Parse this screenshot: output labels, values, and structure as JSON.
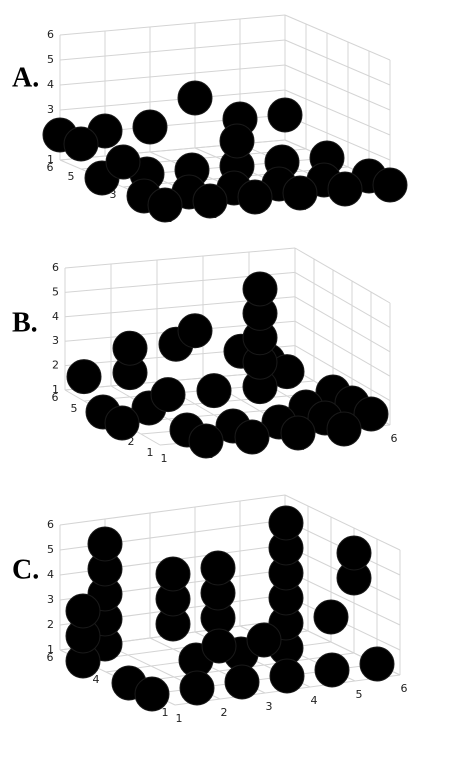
{
  "chart_data": [
    {
      "type": "scatter3d",
      "title": "A.",
      "color": "#000000",
      "grid": true,
      "x": [
        1,
        2,
        3,
        4,
        5,
        6,
        1,
        2,
        3,
        4,
        5,
        6,
        4,
        1,
        2,
        3,
        4,
        5,
        6,
        1,
        2,
        3,
        4,
        5,
        6,
        1,
        1
      ],
      "y": [
        6,
        6,
        6,
        6,
        6,
        6,
        4,
        4,
        4,
        4,
        4,
        4,
        4,
        2,
        2,
        2,
        2,
        2,
        2,
        1,
        1,
        1,
        1,
        1,
        1,
        5,
        3
      ],
      "z": [
        2,
        2,
        2,
        3,
        2,
        2,
        1,
        1,
        1,
        1,
        1,
        1,
        2,
        1,
        1,
        1,
        1,
        1,
        1,
        1,
        1,
        1,
        1,
        1,
        1,
        2,
        2
      ],
      "xlim": [
        1,
        6
      ],
      "ylim": [
        1,
        6
      ],
      "zlim": [
        1,
        6
      ],
      "xticks": [
        1,
        2,
        3,
        4,
        5,
        6
      ],
      "yticks": [
        1,
        2,
        3,
        4,
        5,
        6
      ],
      "zticks": [
        1,
        2,
        3,
        4,
        5,
        6
      ]
    },
    {
      "type": "scatter3d",
      "title": "B.",
      "color": "#000000",
      "grid": true,
      "x": [
        1,
        2,
        3,
        2,
        5,
        6,
        4,
        4,
        4,
        4,
        4,
        2,
        2,
        3,
        3,
        4,
        5,
        5,
        6,
        3,
        2,
        1,
        1,
        3,
        4,
        5,
        6,
        4,
        2,
        5
      ],
      "y": [
        3,
        2,
        1,
        1,
        1,
        2,
        3,
        3,
        3,
        3,
        3,
        5,
        5,
        5,
        4,
        4,
        4,
        5,
        4,
        3,
        3,
        5,
        4,
        2,
        2,
        3,
        3,
        1,
        4,
        2
      ],
      "z": [
        1,
        1,
        1,
        1,
        1,
        1,
        2,
        3,
        4,
        5,
        6,
        2,
        3,
        3,
        4,
        3,
        2,
        2,
        1,
        2,
        2,
        2,
        1,
        1,
        1,
        1,
        1,
        1,
        1,
        1
      ],
      "xlim": [
        1,
        6
      ],
      "ylim": [
        1,
        6
      ],
      "zlim": [
        1,
        6
      ],
      "xticks": [
        1,
        2,
        3,
        4,
        5,
        6
      ],
      "yticks": [
        1,
        2,
        3,
        4,
        5,
        6
      ],
      "zticks": [
        1,
        2,
        3,
        4,
        5,
        6
      ]
    },
    {
      "type": "scatter3d",
      "title": "C.",
      "color": "#000000",
      "grid": true,
      "x": [
        1,
        1,
        1,
        2,
        2,
        2,
        2,
        2,
        3,
        3,
        3,
        4,
        4,
        4,
        3,
        4,
        3,
        4,
        2,
        3,
        4,
        5,
        5,
        5,
        5,
        5,
        5,
        6,
        6,
        6,
        5,
        1,
        1,
        6
      ],
      "y": [
        5,
        5,
        5,
        6,
        6,
        6,
        6,
        6,
        5,
        5,
        5,
        5,
        5,
        5,
        4,
        4,
        2,
        2,
        2,
        3,
        3,
        4,
        4,
        4,
        4,
        4,
        4,
        3,
        3,
        4,
        2,
        3,
        2,
        2
      ],
      "z": [
        1,
        2,
        3,
        1,
        2,
        3,
        4,
        5,
        2,
        3,
        4,
        2,
        3,
        4,
        1,
        1,
        1,
        1,
        1,
        2,
        2,
        1,
        2,
        3,
        4,
        5,
        6,
        4,
        5,
        2,
        1,
        1,
        1,
        1
      ],
      "xlim": [
        1,
        6
      ],
      "ylim": [
        1,
        6
      ],
      "zlim": [
        1,
        6
      ],
      "xticks": [
        1,
        2,
        3,
        4,
        5,
        6
      ],
      "yticks": [
        1,
        2,
        3,
        4,
        5,
        6
      ],
      "zticks": [
        1,
        2,
        3,
        4,
        5,
        6
      ]
    }
  ]
}
